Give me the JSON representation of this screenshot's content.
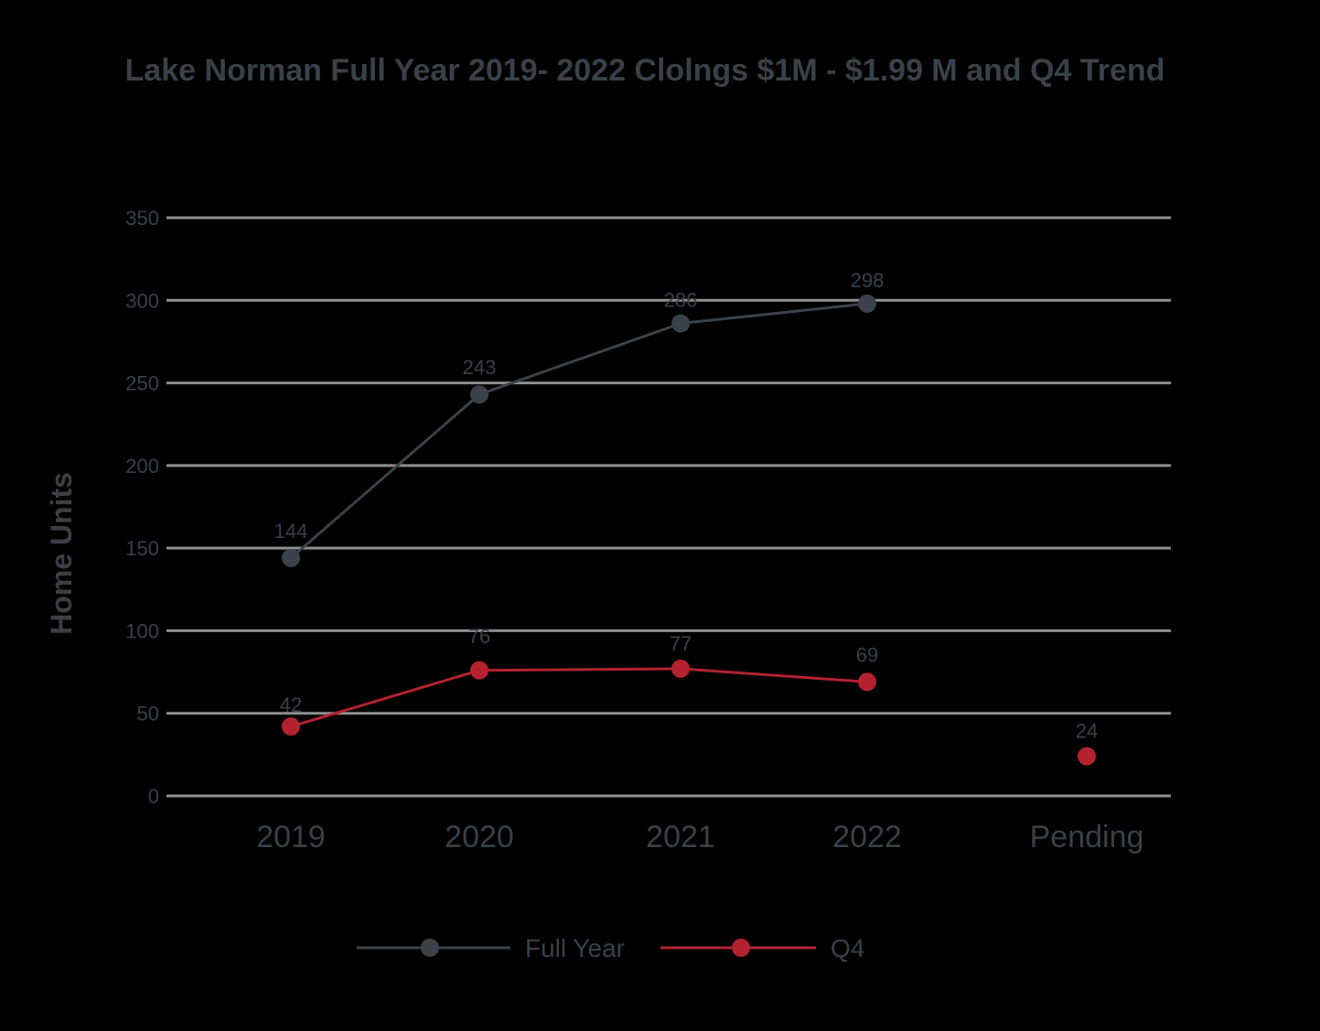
{
  "chart_data": {
    "type": "line",
    "title": "Lake Norman Full Year 2019- 2022 Clolngs $1M - $1.99 M and Q4 Trend",
    "xlabel": "",
    "ylabel": "Home Units",
    "categories": [
      "2019",
      "2020",
      "2021",
      "2022",
      "Pending"
    ],
    "ylim": [
      0,
      350
    ],
    "yticks": [
      0,
      50,
      100,
      150,
      200,
      250,
      300,
      350
    ],
    "grid": true,
    "legend_position": "bottom-center",
    "series": [
      {
        "name": "Full Year",
        "color": "#3b4249",
        "values": [
          144,
          243,
          286,
          298,
          null
        ],
        "labels": [
          "144",
          "243",
          "286",
          "298",
          ""
        ]
      },
      {
        "name": "Q4",
        "color": "#b3222e",
        "values": [
          42,
          76,
          77,
          69,
          24
        ],
        "labels": [
          "42",
          "76",
          "77",
          "69",
          "24"
        ],
        "connected_through": 3
      }
    ]
  }
}
